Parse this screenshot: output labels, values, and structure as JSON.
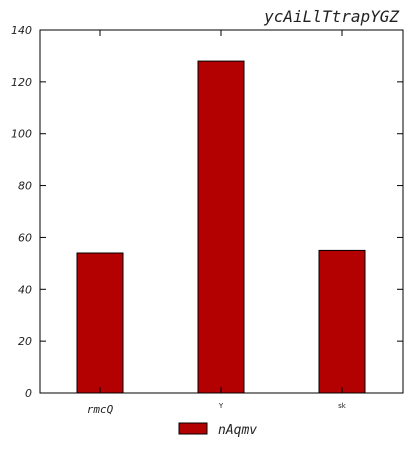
{
  "chart_data": {
    "type": "bar",
    "title": "ycAiLlTtrapYGZ",
    "xlabel": "",
    "ylabel": "",
    "categories": [
      "rmcQ",
      "Y",
      "sk"
    ],
    "series": [
      {
        "name": "nAqmv",
        "values": [
          54,
          128,
          55
        ],
        "color": "#b30000"
      }
    ],
    "ylim": [
      0,
      140
    ],
    "yticks": [
      0,
      20,
      40,
      60,
      80,
      100,
      120,
      140
    ],
    "ytick_labels": [
      "0",
      "20",
      "40",
      "60",
      "80",
      "100",
      "120",
      "140"
    ],
    "grid": false,
    "legend_position": "bottom-center"
  },
  "colors": {
    "bar_fill": "#b30000",
    "bar_edge": "#000000",
    "axis": "#000000"
  }
}
